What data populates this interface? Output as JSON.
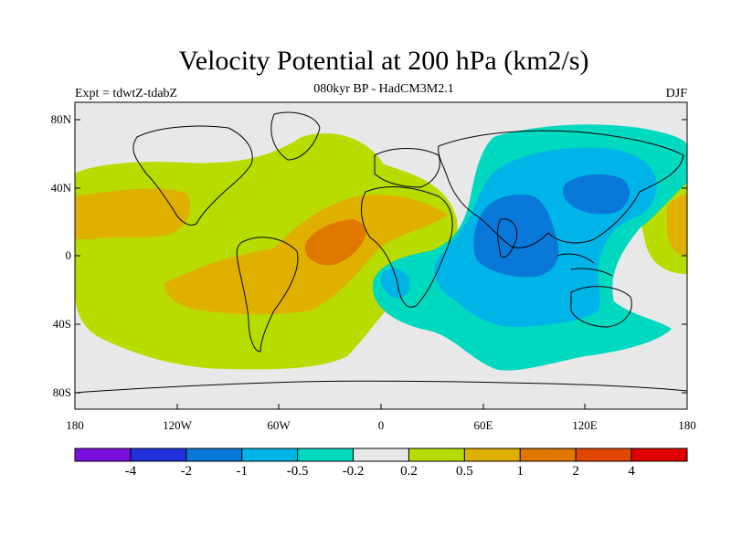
{
  "title": "Velocity Potential at 200 hPa (km2/s)",
  "subtitle": "080kyr BP - HadCM3M2.1",
  "experiment": "Expt = tdwtZ-tdabZ",
  "season": "DJF",
  "lat_labels": [
    "80N",
    "40N",
    "0",
    "40S",
    "80S"
  ],
  "lon_labels": [
    "180",
    "120W",
    "60W",
    "0",
    "60E",
    "120E",
    "180"
  ],
  "colorbar": {
    "colors": [
      "#7a10e0",
      "#2030d8",
      "#0a78d8",
      "#00b4e8",
      "#00d8c0",
      "#e8e8e8",
      "#b8dc00",
      "#e0b000",
      "#e07800",
      "#e04800",
      "#e00000"
    ],
    "labels": [
      "-4",
      "-2",
      "-1",
      "-0.5",
      "-0.2",
      "0.2",
      "0.5",
      "1",
      "2",
      "4"
    ]
  }
}
